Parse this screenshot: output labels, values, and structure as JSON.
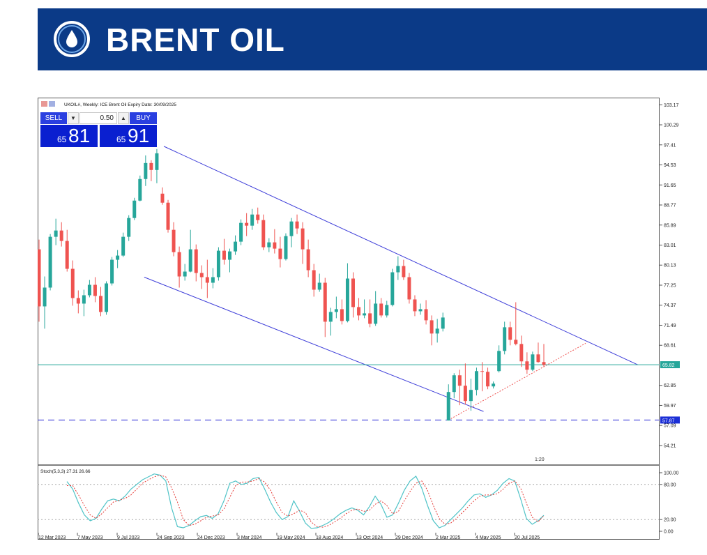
{
  "header": {
    "title": "BRENT OIL",
    "background_color": "#0b3a87",
    "icon": "oil-drop-icon"
  },
  "trade_panel": {
    "sell_label": "SELL",
    "buy_label": "BUY",
    "lot": "0.50",
    "sell_price_prefix": "65",
    "sell_price_main": "81",
    "buy_price_prefix": "65",
    "buy_price_main": "91",
    "down_arrow": "▼",
    "up_arrow": "▲"
  },
  "chart_data": {
    "type": "candlestick",
    "title": "UKOIL#, Weekly: ICE Brent Oil Expiry Date: 30/09/2025",
    "yticks": [
      "103.17",
      "100.29",
      "97.41",
      "94.53",
      "91.65",
      "88.77",
      "85.89",
      "83.01",
      "80.13",
      "77.25",
      "74.37",
      "71.49",
      "68.61",
      "62.85",
      "59.97",
      "57.09",
      "54.21"
    ],
    "ylim": [
      51.4,
      104.2
    ],
    "x_labels": [
      "12 Mar 2023",
      "7 May 2023",
      "9 Jul 2023",
      "24 Sep 2023",
      "24 Dec 2023",
      "3 Mar 2024",
      "19 May 2024",
      "18 Aug 2024",
      "13 Oct 2024",
      "29 Dec 2024",
      "2 Mar 2025",
      "4 May 2025",
      "20 Jul 2025"
    ],
    "current_price": "65.82",
    "support_level": "57.87",
    "scale_marker": "1:20",
    "colors": {
      "up": "#26a69a",
      "down": "#ef5350",
      "channel": "#3f3fd9",
      "support": "#3f3fd9",
      "trend": "#ef5350",
      "current": "#26a69a"
    },
    "candles": [
      [
        82.4,
        83.8,
        72.0,
        74.2
      ],
      [
        74.2,
        78.5,
        71.0,
        76.9
      ],
      [
        76.9,
        84.6,
        76.5,
        84.2
      ],
      [
        84.2,
        86.8,
        83.0,
        85.1
      ],
      [
        85.1,
        86.3,
        82.8,
        83.6
      ],
      [
        83.6,
        85.2,
        79.2,
        79.6
      ],
      [
        79.6,
        80.8,
        74.3,
        75.4
      ],
      [
        75.4,
        76.5,
        73.2,
        74.6
      ],
      [
        74.6,
        76.6,
        72.8,
        75.8
      ],
      [
        75.8,
        78.0,
        75.5,
        77.3
      ],
      [
        77.3,
        78.4,
        74.8,
        75.7
      ],
      [
        75.7,
        77.0,
        72.8,
        73.4
      ],
      [
        73.4,
        77.8,
        73.0,
        77.5
      ],
      [
        77.5,
        81.3,
        77.2,
        80.9
      ],
      [
        80.9,
        82.3,
        79.7,
        81.5
      ],
      [
        81.5,
        84.8,
        81.3,
        84.2
      ],
      [
        84.2,
        87.3,
        83.6,
        86.9
      ],
      [
        86.9,
        89.8,
        86.6,
        89.4
      ],
      [
        89.4,
        93.0,
        89.3,
        92.5
      ],
      [
        92.5,
        95.9,
        91.5,
        94.8
      ],
      [
        94.8,
        95.2,
        92.2,
        93.8
      ],
      [
        93.8,
        96.8,
        91.9,
        96.2
      ],
      [
        90.4,
        91.3,
        88.8,
        89.1
      ],
      [
        89.1,
        89.5,
        84.8,
        85.2
      ],
      [
        85.2,
        86.3,
        81.4,
        82.0
      ],
      [
        82.0,
        82.8,
        76.9,
        78.5
      ],
      [
        78.5,
        80.3,
        77.9,
        79.2
      ],
      [
        79.2,
        85.2,
        79.1,
        82.4
      ],
      [
        82.4,
        83.1,
        77.8,
        79.0
      ],
      [
        79.0,
        80.1,
        76.7,
        78.4
      ],
      [
        78.4,
        80.9,
        75.4,
        77.6
      ],
      [
        77.6,
        79.7,
        76.8,
        78.4
      ],
      [
        78.4,
        82.7,
        77.9,
        82.2
      ],
      [
        82.2,
        83.9,
        80.2,
        80.9
      ],
      [
        80.9,
        82.5,
        79.1,
        82.1
      ],
      [
        82.1,
        84.4,
        81.6,
        83.5
      ],
      [
        83.5,
        86.7,
        83.0,
        86.2
      ],
      [
        86.2,
        87.6,
        84.3,
        85.8
      ],
      [
        85.8,
        88.2,
        85.2,
        87.4
      ],
      [
        87.4,
        88.4,
        86.1,
        86.6
      ],
      [
        86.6,
        87.4,
        82.3,
        82.7
      ],
      [
        82.7,
        84.0,
        82.0,
        83.4
      ],
      [
        83.4,
        85.3,
        81.8,
        82.5
      ],
      [
        82.5,
        84.2,
        79.8,
        81.0
      ],
      [
        81.0,
        84.7,
        80.8,
        84.3
      ],
      [
        84.3,
        86.9,
        82.7,
        86.4
      ],
      [
        86.4,
        87.4,
        84.6,
        85.4
      ],
      [
        85.4,
        86.3,
        80.3,
        82.4
      ],
      [
        82.4,
        83.8,
        78.4,
        79.4
      ],
      [
        79.4,
        80.3,
        75.6,
        76.6
      ],
      [
        76.6,
        78.9,
        76.3,
        77.6
      ],
      [
        77.6,
        78.3,
        69.8,
        72.0
      ],
      [
        72.0,
        74.0,
        70.0,
        73.4
      ],
      [
        73.4,
        75.6,
        72.5,
        73.8
      ],
      [
        73.8,
        75.2,
        71.6,
        72.1
      ],
      [
        72.1,
        80.4,
        71.9,
        78.2
      ],
      [
        78.2,
        79.1,
        72.6,
        74.1
      ],
      [
        74.1,
        75.4,
        72.2,
        72.9
      ],
      [
        72.9,
        75.2,
        72.5,
        73.2
      ],
      [
        73.2,
        75.2,
        71.2,
        71.7
      ],
      [
        71.7,
        76.4,
        71.4,
        74.6
      ],
      [
        74.6,
        75.4,
        72.6,
        72.9
      ],
      [
        72.9,
        75.0,
        72.6,
        74.4
      ],
      [
        74.4,
        79.6,
        74.2,
        79.1
      ],
      [
        79.1,
        81.4,
        78.0,
        80.0
      ],
      [
        80.0,
        80.9,
        78.0,
        78.4
      ],
      [
        78.4,
        79.0,
        74.6,
        75.2
      ],
      [
        75.2,
        75.8,
        72.8,
        73.5
      ],
      [
        73.5,
        74.6,
        73.0,
        73.8
      ],
      [
        73.8,
        75.1,
        71.6,
        72.2
      ],
      [
        72.2,
        72.9,
        68.6,
        70.3
      ],
      [
        70.3,
        72.4,
        69.0,
        71.0
      ],
      [
        71.0,
        73.3,
        70.6,
        72.6
      ],
      [
        57.8,
        63.0,
        57.8,
        61.9
      ],
      [
        61.9,
        64.6,
        61.0,
        64.3
      ],
      [
        64.3,
        65.1,
        60.0,
        62.8
      ],
      [
        62.8,
        66.0,
        60.1,
        60.6
      ],
      [
        60.6,
        63.8,
        59.2,
        62.2
      ],
      [
        62.2,
        65.4,
        61.4,
        64.9
      ],
      [
        64.9,
        66.2,
        62.0,
        64.8
      ],
      [
        64.8,
        65.4,
        62.3,
        62.7
      ],
      [
        62.7,
        63.4,
        62.4,
        63.1
      ],
      [
        64.9,
        68.6,
        64.7,
        67.8
      ],
      [
        67.8,
        72.0,
        67.3,
        71.2
      ],
      [
        71.2,
        72.0,
        68.6,
        69.4
      ],
      [
        69.4,
        74.8,
        68.6,
        68.8
      ],
      [
        68.8,
        70.0,
        65.5,
        66.3
      ],
      [
        66.3,
        67.6,
        64.5,
        65.1
      ],
      [
        65.1,
        67.7,
        64.9,
        67.3
      ],
      [
        67.3,
        69.0,
        66.1,
        66.2
      ],
      [
        66.2,
        68.8,
        65.5,
        65.8
      ]
    ],
    "stoch_label": "Stoch(5,3,3) 27.31 26.66",
    "stoch_levels": [
      "100.00",
      "80.00",
      "20.00",
      "0.00"
    ],
    "stoch_k": [
      85,
      72,
      48,
      28,
      18,
      22,
      38,
      52,
      55,
      52,
      60,
      72,
      80,
      88,
      93,
      98,
      96,
      86,
      40,
      8,
      6,
      10,
      18,
      25,
      27,
      22,
      30,
      52,
      82,
      86,
      80,
      82,
      90,
      92,
      72,
      50,
      32,
      20,
      25,
      52,
      34,
      14,
      5,
      6,
      10,
      15,
      22,
      30,
      36,
      40,
      36,
      28,
      42,
      60,
      46,
      24,
      28,
      48,
      70,
      86,
      94,
      74,
      44,
      18,
      6,
      10,
      20,
      30,
      40,
      52,
      62,
      64,
      58,
      62,
      70,
      82,
      90,
      86,
      56,
      22,
      12,
      18,
      27.31
    ],
    "stoch_d": [
      78,
      78,
      62,
      44,
      28,
      22,
      30,
      40,
      50,
      53,
      56,
      62,
      72,
      82,
      88,
      93,
      96,
      93,
      74,
      50,
      20,
      10,
      12,
      18,
      24,
      26,
      28,
      38,
      58,
      78,
      84,
      84,
      86,
      90,
      84,
      70,
      50,
      32,
      26,
      30,
      36,
      32,
      16,
      8,
      7,
      10,
      16,
      22,
      30,
      36,
      38,
      34,
      36,
      46,
      52,
      44,
      30,
      34,
      52,
      68,
      82,
      86,
      70,
      44,
      22,
      12,
      14,
      22,
      32,
      42,
      52,
      60,
      62,
      62,
      64,
      72,
      82,
      86,
      74,
      48,
      24,
      16,
      26.66
    ]
  }
}
